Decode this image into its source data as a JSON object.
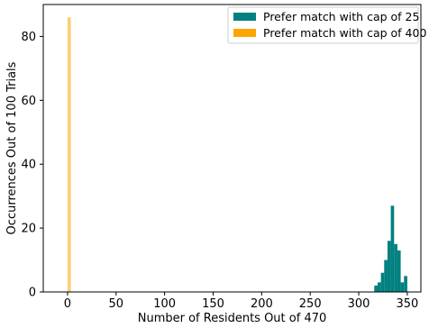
{
  "chart_data": {
    "type": "bar",
    "xlabel": "Number of Residents Out of 470",
    "ylabel": "Occurrences Out of 100 Trials",
    "xlim": [
      -25,
      364
    ],
    "ylim": [
      0,
      90
    ],
    "xticks": [
      0,
      50,
      100,
      150,
      200,
      250,
      300,
      350
    ],
    "yticks": [
      0,
      20,
      40,
      60,
      80
    ],
    "legend_location": "top-right",
    "bin_width": 3.4,
    "series": [
      {
        "name": "Prefer match with cap of 25",
        "color": "#008080",
        "bins": [
          {
            "x": 316.0,
            "count": 2
          },
          {
            "x": 319.4,
            "count": 3
          },
          {
            "x": 322.8,
            "count": 6
          },
          {
            "x": 326.2,
            "count": 10
          },
          {
            "x": 329.6,
            "count": 16
          },
          {
            "x": 333.0,
            "count": 27
          },
          {
            "x": 336.4,
            "count": 15
          },
          {
            "x": 339.8,
            "count": 13
          },
          {
            "x": 343.2,
            "count": 3
          },
          {
            "x": 346.6,
            "count": 5
          }
        ]
      },
      {
        "name": "Prefer match with cap of 400",
        "color": "#ffa500",
        "bins": [
          {
            "x": 0.0,
            "count": 86
          }
        ]
      }
    ]
  }
}
